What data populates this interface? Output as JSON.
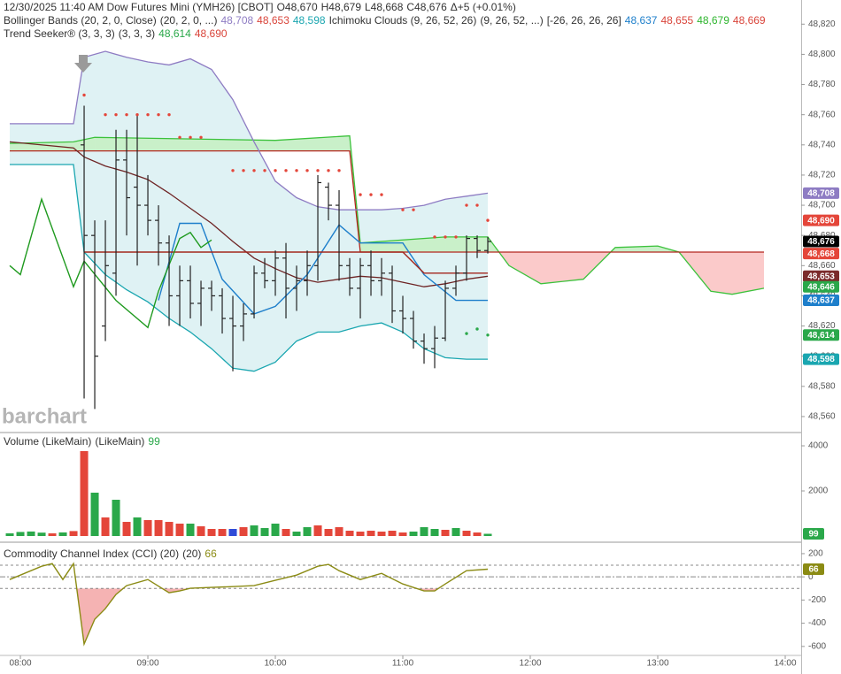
{
  "chart_data": [
    {
      "type": "ohlc",
      "title": "12/30/2025  11:40 AM Dow Futures Mini (YMH26) [CBOT]",
      "quote": [
        "O48,670",
        "H48,679",
        "L48,668",
        "C48,676",
        "Δ+5 (+0.01%)"
      ],
      "watermark": "barchart",
      "color": "#222222",
      "x": [
        510,
        515,
        520,
        525,
        530,
        535,
        540,
        545,
        550,
        555,
        560,
        565,
        570,
        575,
        580,
        585,
        590,
        595,
        600,
        605,
        610,
        615,
        620,
        625,
        630,
        635,
        640,
        645,
        650,
        655,
        660,
        665,
        670,
        675,
        680,
        685,
        690,
        695,
        700
      ],
      "open": [
        48740,
        48680,
        48620,
        48655,
        48730,
        48712,
        48700,
        48690,
        48675,
        48640,
        48650,
        48635,
        48645,
        48640,
        48625,
        48620,
        48628,
        48655,
        48650,
        48665,
        48645,
        48650,
        48660,
        48712,
        48700,
        48660,
        48645,
        48660,
        48650,
        48655,
        48630,
        48625,
        48610,
        48605,
        48612,
        48645,
        48655,
        48678,
        48670
      ],
      "high": [
        48766,
        48690,
        48690,
        48750,
        48750,
        48760,
        48720,
        48700,
        48680,
        48660,
        48660,
        48650,
        48650,
        48645,
        48640,
        48635,
        48660,
        48665,
        48670,
        48675,
        48660,
        48670,
        48720,
        48715,
        48710,
        48665,
        48665,
        48670,
        48665,
        48660,
        48640,
        48630,
        48615,
        48620,
        48650,
        48660,
        48680,
        48680,
        48679
      ],
      "low": [
        48572,
        48565,
        48610,
        48640,
        48680,
        48660,
        48680,
        48660,
        48620,
        48620,
        48625,
        48620,
        48630,
        48615,
        48590,
        48610,
        48625,
        48645,
        48640,
        48625,
        48630,
        48640,
        48650,
        48690,
        48650,
        48640,
        48625,
        48640,
        48640,
        48622,
        48615,
        48605,
        48595,
        48592,
        48610,
        48640,
        48650,
        48665,
        48668
      ],
      "close": [
        48680,
        48600,
        48660,
        48730,
        48705,
        48700,
        48690,
        48675,
        48640,
        48650,
        48635,
        48645,
        48640,
        48625,
        48620,
        48628,
        48655,
        48650,
        48665,
        48645,
        48650,
        48660,
        48715,
        48700,
        48660,
        48645,
        48660,
        48650,
        48655,
        48630,
        48625,
        48610,
        48605,
        48612,
        48645,
        48655,
        48678,
        48670,
        48676
      ],
      "xlim": [
        470.4,
        847.5
      ],
      "ylim": [
        48550,
        48836
      ],
      "yticks": [
        {
          "value": 48560,
          "label": "48,560"
        },
        {
          "value": 48580,
          "label": "48,580"
        },
        {
          "value": 48600,
          "label": "48,600"
        },
        {
          "value": 48620,
          "label": "48,620"
        },
        {
          "value": 48640,
          "label": "48,640"
        },
        {
          "value": 48660,
          "label": "48,660"
        },
        {
          "value": 48680,
          "label": "48,680"
        },
        {
          "value": 48700,
          "label": "48,700"
        },
        {
          "value": 48720,
          "label": "48,720"
        },
        {
          "value": 48740,
          "label": "48,740"
        },
        {
          "value": 48760,
          "label": "48,760"
        },
        {
          "value": 48780,
          "label": "48,780"
        },
        {
          "value": 48800,
          "label": "48,800"
        },
        {
          "value": 48820,
          "label": "48,820"
        }
      ],
      "indicators": [
        {
          "name": "Bollinger Bands (20, 2, 0, Close)",
          "params": [
            "(20, 2, 0, ...)"
          ],
          "readings": [
            "48,708",
            "48,653",
            "48,598"
          ],
          "reading_colors": [
            "#8e7cc3",
            "#d9443a",
            "#1aa6b0"
          ],
          "band_fill": "#dff2f4",
          "x": [
            475,
            505,
            510,
            520,
            530,
            540,
            550,
            560,
            570,
            580,
            590,
            600,
            610,
            620,
            630,
            640,
            650,
            660,
            670,
            680,
            690,
            700
          ],
          "lines": [
            {
              "color": "#8e7cc3",
              "values": [
                48754,
                48754,
                48798,
                48802,
                48798,
                48795,
                48793,
                48797,
                48790,
                48770,
                48742,
                48716,
                48705,
                48699,
                48697,
                48697,
                48697,
                48698,
                48700,
                48704,
                48706,
                48708
              ]
            },
            {
              "color": "#6e2424",
              "values": [
                48742,
                48738,
                48732,
                48726,
                48722,
                48717,
                48708,
                48698,
                48688,
                48676,
                48665,
                48658,
                48652,
                48649,
                48651,
                48653,
                48652,
                48649,
                48646,
                48648,
                48651,
                48653
              ]
            },
            {
              "color": "#1aa6b0",
              "values": [
                48727,
                48727,
                48669,
                48654,
                48644,
                48636,
                48625,
                48616,
                48605,
                48592,
                48590,
                48596,
                48610,
                48616,
                48616,
                48620,
                48622,
                48616,
                48605,
                48599,
                48598,
                48598
              ]
            }
          ]
        },
        {
          "name": "Ichimoku Clouds (9, 26, 52, 26)",
          "params": [
            "(9, 26, 52, ...)",
            "[-26, 26, 26, 26]"
          ],
          "readings": [
            "48,637",
            "48,655",
            "48,679",
            "48,669"
          ],
          "reading_colors": [
            "#1e7fcb",
            "#d9443a",
            "#2db52d",
            "#d9443a"
          ],
          "lines": [
            {
              "color": "#1e7fcb",
              "x": [
                545,
                555,
                565,
                575,
                590,
                600,
                615,
                630,
                640,
                660,
                670,
                685,
                700
              ],
              "values": [
                48637,
                48688,
                48688,
                48651,
                48628,
                48633,
                48654,
                48687,
                48675,
                48675,
                48654,
                48637,
                48637
              ]
            },
            {
              "color": "#a3271d",
              "x": [
                510,
                660,
                670,
                700
              ],
              "values": [
                48669,
                48669,
                48655,
                48655
              ]
            },
            {
              "color": "#1f9a1f",
              "x": [
                475,
                480,
                490,
                505,
                510,
                525,
                540,
                545,
                555,
                560,
                565,
                570
              ],
              "values": [
                48660,
                48654,
                48704,
                48646,
                48663,
                48637,
                48619,
                48643,
                48678,
                48682,
                48672,
                48677
              ]
            }
          ],
          "cloud_x": [
            475,
            505,
            515,
            600,
            635,
            640,
            680,
            700,
            710,
            725,
            745,
            760,
            780,
            790,
            805,
            815,
            830
          ],
          "cloud_lines": [
            {
              "color": "#3cc23c",
              "values": [
                48741,
                48742,
                48745,
                48743,
                48746,
                48675,
                48679,
                48679,
                48660,
                48648,
                48651,
                48672,
                48673,
                48669,
                48643,
                48641,
                48645
              ]
            },
            {
              "color": "#b3261e",
              "values": [
                48736,
                48736,
                48736,
                48736,
                48736,
                48669,
                48669,
                48669,
                48669,
                48669,
                48669,
                48669,
                48669,
                48669,
                48669,
                48669,
                48669
              ]
            }
          ],
          "cloud_colors": [
            "#c9f0c9",
            "#fbcaca"
          ]
        },
        {
          "name": "Trend Seeker® (3, 3, 3)",
          "params": [
            "(3, 3, 3)"
          ],
          "readings": [
            "48,614",
            "48,690"
          ],
          "reading_colors": [
            "#2aa84a",
            "#d9443a"
          ],
          "dots": [
            {
              "color": "#e4463a",
              "x": [
                510,
                520,
                525,
                530,
                535,
                540,
                545,
                550,
                555,
                560,
                565,
                580,
                585,
                590,
                595,
                600,
                605,
                610,
                615,
                620,
                625,
                630,
                640,
                645,
                650,
                660,
                665,
                675,
                680,
                685,
                690,
                695,
                700
              ],
              "values": [
                48773,
                48760,
                48760,
                48760,
                48760,
                48760,
                48760,
                48760,
                48745,
                48745,
                48745,
                48723,
                48723,
                48723,
                48723,
                48723,
                48723,
                48723,
                48723,
                48723,
                48723,
                48723,
                48707,
                48707,
                48707,
                48697,
                48697,
                48679,
                48679,
                48679,
                48700,
                48700,
                48690
              ]
            },
            {
              "color": "#2aa84a",
              "x": [
                690,
                695,
                700
              ],
              "values": [
                48615,
                48618,
                48614
              ]
            }
          ]
        }
      ],
      "price_labels": [
        {
          "value": 48708,
          "label": "48,708",
          "color": "#8e7cc3"
        },
        {
          "value": 48690,
          "label": "48,690",
          "color": "#e4463a"
        },
        {
          "value": 48676,
          "label": "48,676",
          "color": "#000000"
        },
        {
          "value": 48668,
          "label": "48,668",
          "color": "#e4463a"
        },
        {
          "value": 48653,
          "label": "48,653",
          "color": "#7b2b2b"
        },
        {
          "value": 48646,
          "label": "48,646",
          "color": "#2aa84a"
        },
        {
          "value": 48637,
          "label": "48,637",
          "color": "#1e7fcb"
        },
        {
          "value": 48614,
          "label": "48,614",
          "color": "#2aa84a"
        },
        {
          "value": 48598,
          "label": "48,598",
          "color": "#1aa6b0"
        }
      ]
    },
    {
      "type": "bar",
      "title": "Volume (LikeMain)",
      "params": [
        "(LikeMain)"
      ],
      "badge": 99,
      "badge_color": "#2aa84a",
      "x": [
        475,
        480,
        485,
        490,
        495,
        500,
        505,
        510,
        515,
        520,
        525,
        530,
        535,
        540,
        545,
        550,
        555,
        560,
        565,
        570,
        575,
        580,
        585,
        590,
        595,
        600,
        605,
        610,
        615,
        620,
        625,
        630,
        635,
        640,
        645,
        650,
        655,
        660,
        665,
        670,
        675,
        680,
        685,
        690,
        695,
        700
      ],
      "values": [
        120,
        180,
        200,
        150,
        120,
        160,
        220,
        3765,
        1922,
        824,
        1608,
        627,
        824,
        706,
        706,
        627,
        549,
        549,
        431,
        314,
        314,
        314,
        392,
        471,
        353,
        549,
        314,
        196,
        392,
        471,
        314,
        392,
        235,
        196,
        235,
        196,
        235,
        157,
        196,
        392,
        314,
        275,
        353,
        235,
        157,
        99
      ],
      "colors": [
        "#2aa84a",
        "#2aa84a",
        "#2aa84a",
        "#2aa84a",
        "#e4463a",
        "#2aa84a",
        "#e4463a",
        "#e4463a",
        "#2aa84a",
        "#e4463a",
        "#2aa84a",
        "#e4463a",
        "#2aa84a",
        "#e4463a",
        "#e4463a",
        "#e4463a",
        "#e4463a",
        "#2aa84a",
        "#e4463a",
        "#e4463a",
        "#e4463a",
        "#2f4bd8",
        "#e4463a",
        "#2aa84a",
        "#2aa84a",
        "#2aa84a",
        "#e4463a",
        "#2aa84a",
        "#2aa84a",
        "#e4463a",
        "#e4463a",
        "#e4463a",
        "#e4463a",
        "#e4463a",
        "#e4463a",
        "#e4463a",
        "#e4463a",
        "#e4463a",
        "#2aa84a",
        "#2aa84a",
        "#2aa84a",
        "#e4463a",
        "#2aa84a",
        "#e4463a",
        "#e4463a",
        "#2aa84a"
      ],
      "xlim": [
        470.4,
        847.5
      ],
      "ylim": [
        -235,
        4550
      ],
      "yticks": [
        2000,
        4000
      ]
    },
    {
      "type": "line",
      "title": "Commodity Channel Index (CCI) (20)",
      "params": [
        "(20)"
      ],
      "badge": 66,
      "badge_color": "#8b8b14",
      "color": "#8b8b14",
      "x": [
        475,
        480,
        490,
        495,
        500,
        505,
        510,
        515,
        520,
        525,
        530,
        540,
        550,
        555,
        560,
        570,
        580,
        590,
        600,
        610,
        620,
        625,
        630,
        640,
        650,
        660,
        670,
        675,
        680,
        690,
        700
      ],
      "values": [
        -23,
        15,
        91,
        114,
        -23,
        114,
        -579,
        -366,
        -274,
        -152,
        -76,
        -23,
        -137,
        -122,
        -99,
        -91,
        -84,
        -76,
        -30,
        15,
        91,
        107,
        53,
        -23,
        30,
        -61,
        -122,
        -122,
        -61,
        53,
        66
      ],
      "levels": [
        100,
        0,
        -100
      ],
      "fill_colors": [
        "#bfe8bf",
        "#f5b3b3"
      ],
      "xlim": [
        470.4,
        847.5
      ],
      "ylim": [
        -670,
        291
      ],
      "yticks": [
        200,
        0,
        -200,
        -400,
        -600
      ],
      "xticks": [
        {
          "value": 480,
          "label": "08:00"
        },
        {
          "value": 540,
          "label": "09:00"
        },
        {
          "value": 600,
          "label": "10:00"
        },
        {
          "value": 660,
          "label": "11:00"
        },
        {
          "value": 720,
          "label": "12:00"
        },
        {
          "value": 780,
          "label": "13:00"
        },
        {
          "value": 840,
          "label": "14:00"
        }
      ]
    }
  ]
}
